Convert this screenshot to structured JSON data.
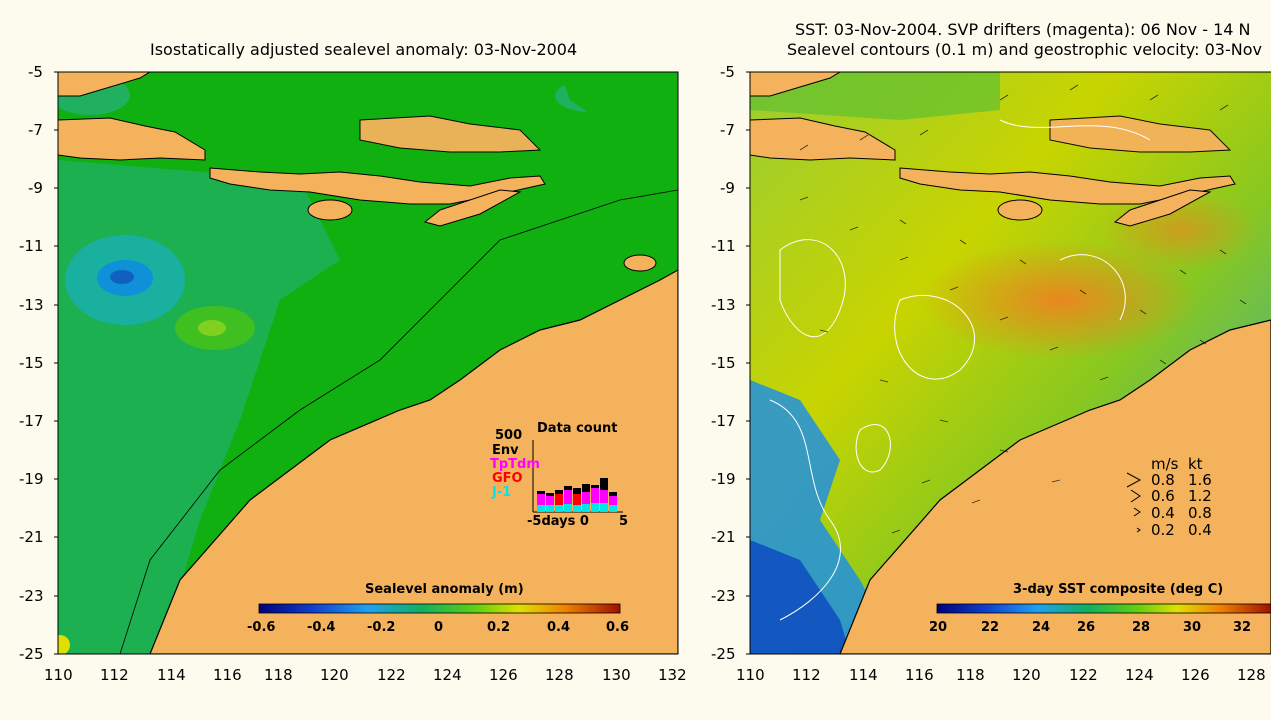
{
  "left": {
    "title": "Isostatically adjusted sealevel anomaly: 03-Nov-2004",
    "yticks": [
      "-5",
      "-7",
      "-9",
      "-11",
      "-13",
      "-15",
      "-17",
      "-19",
      "-21",
      "-23",
      "-25"
    ],
    "xticks": [
      "110",
      "112",
      "114",
      "116",
      "118",
      "120",
      "122",
      "124",
      "126",
      "128",
      "130",
      "132"
    ],
    "colorbar_title": "Sealevel anomaly (m)",
    "colorbar_ticks": [
      "-0.6",
      "-0.4",
      "-0.2",
      "0",
      "0.2",
      "0.4",
      "0.6"
    ],
    "inset": {
      "title": "Data count",
      "max_label": "500",
      "legend": [
        {
          "label": "Env",
          "color": "#000000"
        },
        {
          "label": "TpTdm",
          "color": "#ff00ff"
        },
        {
          "label": "GFO",
          "color": "#ff0000"
        },
        {
          "label": "J-1",
          "color": "#00e5e5"
        }
      ],
      "xlabel": "-5days 0",
      "xend": "5"
    }
  },
  "right": {
    "title_line1": "SST: 03-Nov-2004. SVP drifters (magenta): 06 Nov - 14 N",
    "title_line2": "Sealevel contours (0.1 m) and geostrophic velocity: 03-Nov",
    "yticks": [
      "-5",
      "-7",
      "-9",
      "-11",
      "-13",
      "-15",
      "-17",
      "-19",
      "-21",
      "-23",
      "-25"
    ],
    "xticks": [
      "110",
      "112",
      "114",
      "116",
      "118",
      "120",
      "122",
      "124",
      "126",
      "128"
    ],
    "colorbar_title": "3-day SST composite (deg C)",
    "colorbar_ticks": [
      "20",
      "22",
      "24",
      "26",
      "28",
      "30",
      "32"
    ],
    "speed_legend": {
      "header_ms": "m/s",
      "header_kt": "kt",
      "rows": [
        {
          "ms": "0.8",
          "kt": "1.6"
        },
        {
          "ms": "0.6",
          "kt": "1.2"
        },
        {
          "ms": "0.4",
          "kt": "0.8"
        },
        {
          "ms": "0.2",
          "kt": "0.4"
        }
      ]
    }
  },
  "colors": {
    "land": "#f5b25c",
    "ocean_anomaly": "#10b010",
    "background": "#fdfbee"
  }
}
